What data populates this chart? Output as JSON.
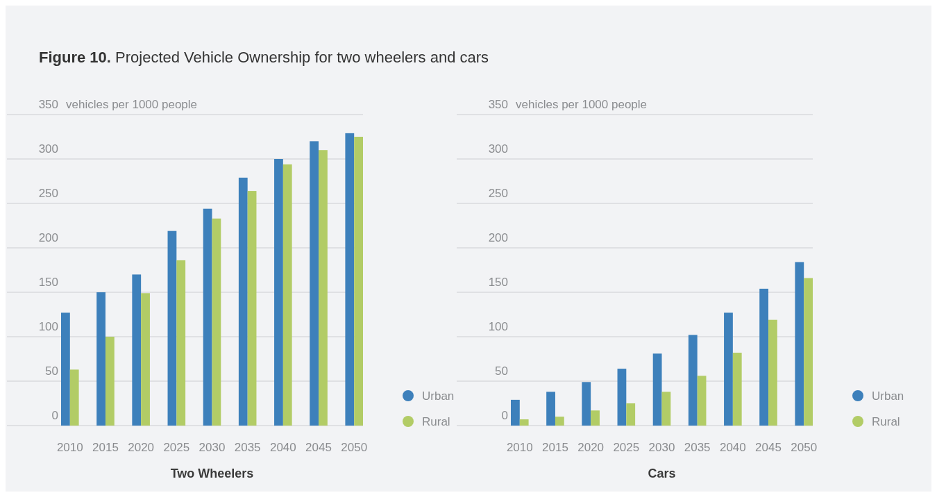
{
  "chart_data": [
    {
      "type": "bar",
      "title": "Figure 10. Projected Vehicle Ownership for two wheelers and cars",
      "xlabel": "Two Wheelers",
      "ylabel": "vehicles per 1000 people",
      "categories": [
        "2010",
        "2015",
        "2020",
        "2025",
        "2030",
        "2035",
        "2040",
        "2045",
        "2050"
      ],
      "series": [
        {
          "name": "Urban",
          "color": "#3d80bb",
          "values": [
            127,
            150,
            170,
            219,
            244,
            279,
            300,
            320,
            329
          ]
        },
        {
          "name": "Rural",
          "color": "#b2cc66",
          "values": [
            63,
            100,
            149,
            186,
            233,
            264,
            294,
            310,
            325
          ]
        }
      ],
      "ylim": [
        0,
        350
      ],
      "yticks": [
        0,
        50,
        100,
        150,
        200,
        250,
        300,
        350
      ],
      "grid": "y",
      "legend": "right"
    },
    {
      "type": "bar",
      "xlabel": "Cars",
      "ylabel": "vehicles per 1000 people",
      "categories": [
        "2010",
        "2015",
        "2020",
        "2025",
        "2030",
        "2035",
        "2040",
        "2045",
        "2050"
      ],
      "series": [
        {
          "name": "Urban",
          "color": "#3d80bb",
          "values": [
            29,
            38,
            49,
            64,
            81,
            102,
            127,
            154,
            184
          ]
        },
        {
          "name": "Rural",
          "color": "#b2cc66",
          "values": [
            7,
            10,
            17,
            25,
            38,
            56,
            82,
            119,
            166
          ]
        }
      ],
      "ylim": [
        0,
        350
      ],
      "yticks": [
        0,
        50,
        100,
        150,
        200,
        250,
        300,
        350
      ],
      "grid": "y",
      "legend": "right"
    }
  ]
}
